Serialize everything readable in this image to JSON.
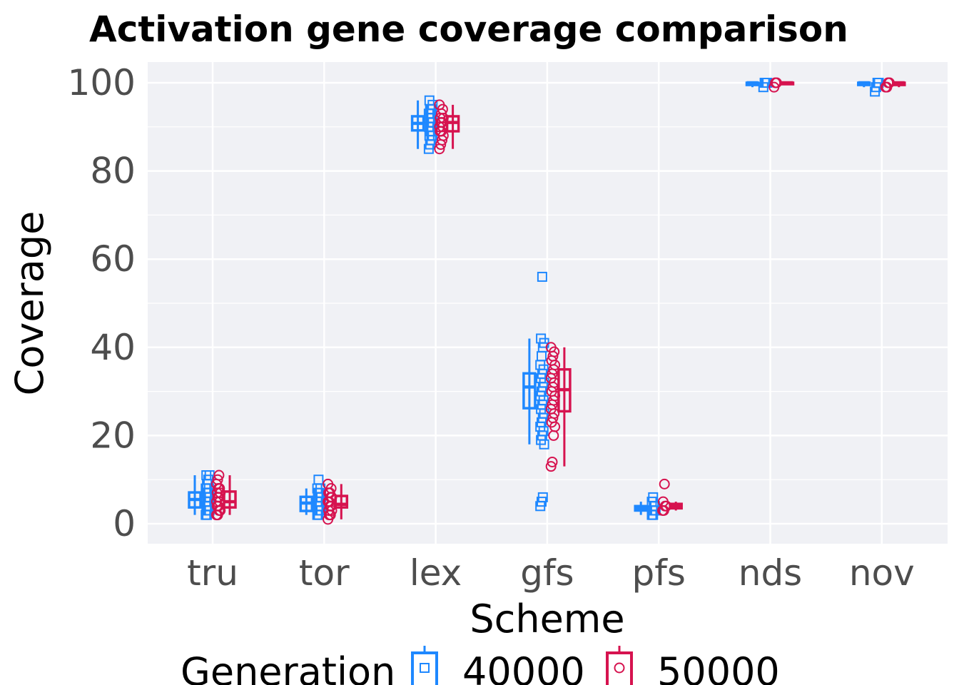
{
  "chart_data": {
    "type": "boxplot",
    "title": "Activation gene coverage comparison",
    "xlabel": "Scheme",
    "ylabel": "Coverage",
    "ylim": [
      -5,
      105
    ],
    "yticks": [
      0,
      20,
      40,
      60,
      80,
      100
    ],
    "categories": [
      "tru",
      "tor",
      "lex",
      "gfs",
      "pfs",
      "nds",
      "nov"
    ],
    "grid": true,
    "legend": {
      "title": "Generation",
      "position": "bottom"
    },
    "series": [
      {
        "name": "40000",
        "color": "#1e88ff",
        "marker": "square",
        "boxes": [
          {
            "min": 2,
            "q1": 3.7,
            "median": 5.5,
            "q3": 7.1,
            "max": 11
          },
          {
            "min": 2,
            "q1": 2.9,
            "median": 4.7,
            "q3": 6.1,
            "max": 8
          },
          {
            "min": 85,
            "q1": 89.2,
            "median": 90.8,
            "q3": 92.4,
            "max": 96
          },
          {
            "min": 18,
            "q1": 26.2,
            "median": 31,
            "q3": 34.1,
            "max": 42
          },
          {
            "min": 2,
            "q1": 3,
            "median": 3.5,
            "q3": 4,
            "max": 5
          },
          {
            "min": 99,
            "q1": 99.5,
            "median": 100,
            "q3": 100,
            "max": 100
          },
          {
            "min": 99,
            "q1": 99.5,
            "median": 100,
            "q3": 100,
            "max": 100
          }
        ],
        "points": [
          [
            2,
            2,
            3,
            3,
            4,
            4,
            5,
            5,
            5,
            6,
            6,
            7,
            7,
            8,
            8,
            9,
            10,
            11,
            11
          ],
          [
            2,
            2,
            3,
            3,
            3,
            4,
            4,
            5,
            5,
            6,
            6,
            7,
            7,
            8,
            8,
            10
          ],
          [
            85,
            86,
            87,
            88,
            88,
            89,
            89,
            90,
            90,
            91,
            91,
            92,
            92,
            93,
            93,
            94,
            94,
            95,
            96
          ],
          [
            4,
            5,
            6,
            18,
            19,
            20,
            21,
            22,
            23,
            24,
            25,
            26,
            27,
            28,
            29,
            30,
            31,
            32,
            33,
            34,
            35,
            36,
            38,
            40,
            41,
            42,
            56
          ],
          [
            2,
            2,
            3,
            3,
            3,
            4,
            4,
            5,
            6
          ],
          [
            99,
            100,
            100,
            100
          ],
          [
            98,
            99,
            100,
            100
          ]
        ]
      },
      {
        "name": "50000",
        "color": "#d6134f",
        "marker": "circle",
        "boxes": [
          {
            "min": 2,
            "q1": 3.7,
            "median": 5,
            "q3": 7.3,
            "max": 11
          },
          {
            "min": 1,
            "q1": 3.7,
            "median": 4.4,
            "q3": 6.3,
            "max": 9
          },
          {
            "min": 85,
            "q1": 89,
            "median": 91,
            "q3": 92.4,
            "max": 95
          },
          {
            "min": 13,
            "q1": 25.5,
            "median": 30.4,
            "q3": 35,
            "max": 40
          },
          {
            "min": 3,
            "q1": 3.5,
            "median": 4,
            "q3": 4.5,
            "max": 5
          },
          {
            "min": 100,
            "q1": 100,
            "median": 100,
            "q3": 100,
            "max": 100
          },
          {
            "min": 99,
            "q1": 99.5,
            "median": 100,
            "q3": 100,
            "max": 100
          }
        ],
        "points": [
          [
            2,
            2,
            3,
            3,
            4,
            4,
            5,
            5,
            6,
            6,
            7,
            7,
            8,
            8,
            9,
            10,
            11
          ],
          [
            1,
            2,
            2,
            3,
            3,
            4,
            4,
            5,
            5,
            6,
            6,
            7,
            7,
            8,
            9
          ],
          [
            85,
            86,
            87,
            88,
            89,
            89,
            90,
            90,
            91,
            91,
            92,
            92,
            93,
            94,
            95
          ],
          [
            13,
            14,
            20,
            22,
            23,
            24,
            25,
            26,
            27,
            28,
            29,
            30,
            31,
            32,
            33,
            34,
            35,
            36,
            37,
            38,
            39,
            40
          ],
          [
            3,
            3,
            4,
            4,
            5,
            9
          ],
          [
            99,
            100,
            100
          ],
          [
            99,
            99,
            100,
            100
          ]
        ]
      }
    ]
  }
}
